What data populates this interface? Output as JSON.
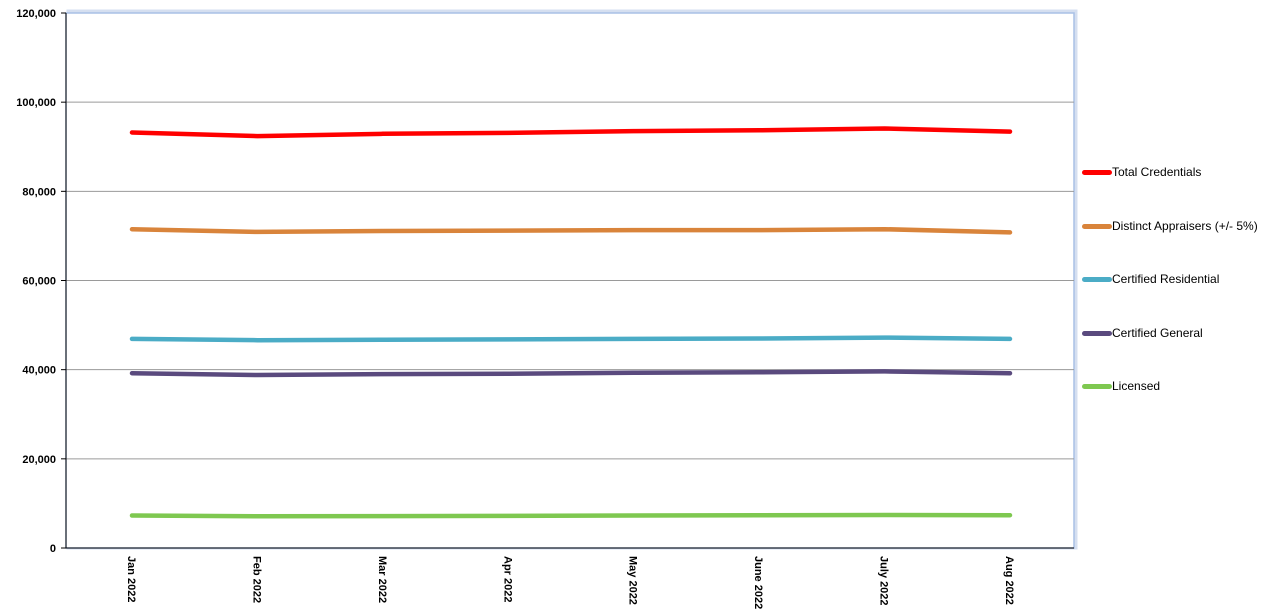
{
  "chart_data": {
    "type": "line",
    "categories": [
      "Jan 2022",
      "Feb 2022",
      "Mar 2022",
      "Apr 2022",
      "May 2022",
      "June 2022",
      "July 2022",
      "Aug 2022"
    ],
    "yticks": [
      "0",
      "20,000",
      "40,000",
      "60,000",
      "80,000",
      "100,000",
      "120,000"
    ],
    "ylim": [
      0,
      120000
    ],
    "grid": true,
    "legend_position": "right",
    "series": [
      {
        "name": "Total Credentials",
        "color": "#ff0000",
        "values": [
          93200,
          92400,
          92900,
          93100,
          93500,
          93700,
          94100,
          93400
        ]
      },
      {
        "name": "Distinct Appraisers (+/- 5%)",
        "color": "#d9843b",
        "values": [
          71500,
          70900,
          71100,
          71200,
          71300,
          71300,
          71500,
          70800
        ]
      },
      {
        "name": "Certified Residential",
        "color": "#4bacc6",
        "values": [
          46900,
          46600,
          46700,
          46800,
          46900,
          47000,
          47200,
          46900
        ]
      },
      {
        "name": "Certified General",
        "color": "#5a4a7e",
        "values": [
          39200,
          38800,
          39000,
          39100,
          39300,
          39400,
          39600,
          39200
        ]
      },
      {
        "name": "Licensed",
        "color": "#7ec850",
        "values": [
          7300,
          7100,
          7150,
          7200,
          7300,
          7350,
          7400,
          7350
        ]
      }
    ]
  }
}
